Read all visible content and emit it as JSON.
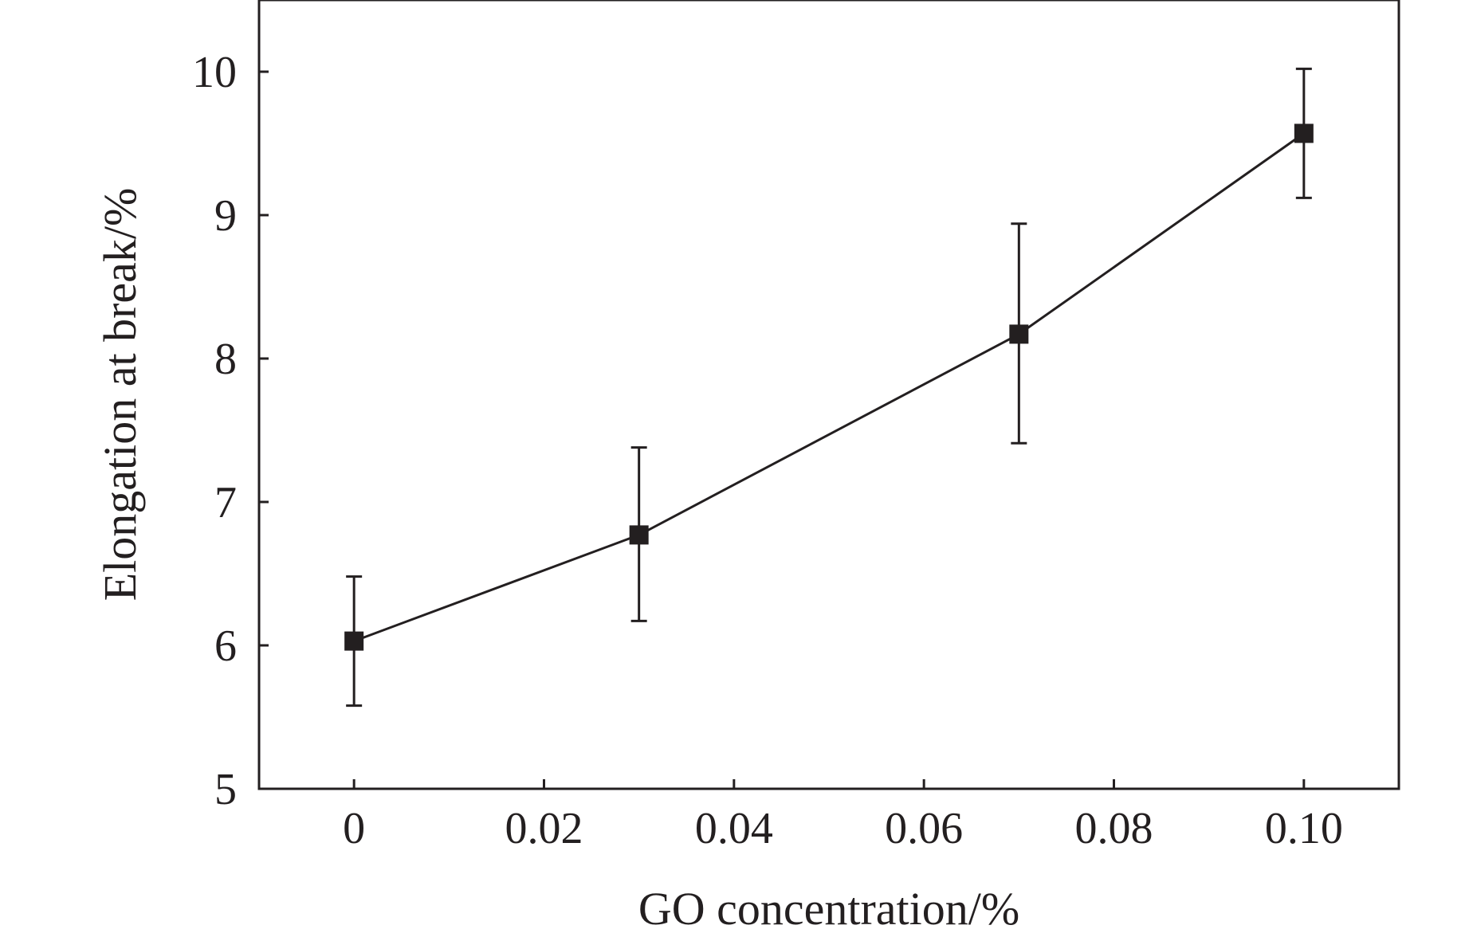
{
  "chart_data": {
    "type": "line",
    "title": "",
    "xlabel": "GO concentration/%",
    "ylabel": "Elongation at break/%",
    "xlim": [
      -0.01,
      0.11
    ],
    "ylim": [
      5,
      10.5
    ],
    "xticks": [
      0,
      0.02,
      0.04,
      0.06,
      0.08,
      0.1
    ],
    "xtick_labels": [
      "0",
      "0.02",
      "0.04",
      "0.06",
      "0.08",
      "0.10"
    ],
    "yticks": [
      5,
      6,
      7,
      8,
      9,
      10
    ],
    "ytick_labels": [
      "5",
      "6",
      "7",
      "8",
      "9",
      "10"
    ],
    "grid": false,
    "legend": null,
    "series": [
      {
        "name": "Elongation at break",
        "marker": "square",
        "color": "#231f20",
        "x": [
          0,
          0.03,
          0.07,
          0.1
        ],
        "y": [
          6.03,
          6.77,
          8.17,
          9.57
        ],
        "error_low": [
          5.58,
          6.17,
          7.41,
          9.12
        ],
        "error_high": [
          6.48,
          7.38,
          8.94,
          10.02
        ]
      }
    ]
  }
}
